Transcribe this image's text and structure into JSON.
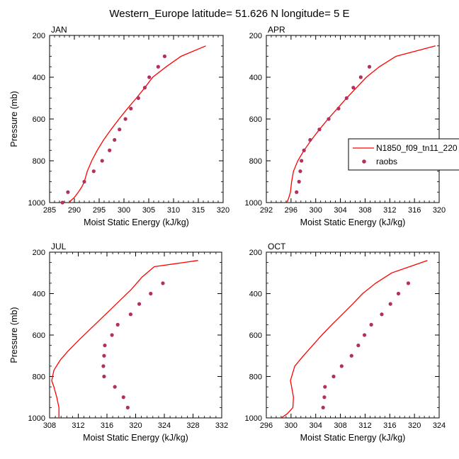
{
  "figure": {
    "title": "Western_Europe  latitude= 51.626 N longitude= 5 E",
    "ylabel": "Pressure (mb)",
    "xlabel": "Moist Static Energy (kJ/kg)",
    "legend": {
      "model_label": "N1850_f09_tn11_220",
      "obs_label": "raobs",
      "placement": "right of APR panel"
    },
    "colors": {
      "model": "#ff0000",
      "obs": "#b03060",
      "axis": "#000000"
    }
  },
  "chart_data": [
    {
      "type": "line+scatter",
      "panel": "JAN",
      "xlabel": "Moist Static Energy (kJ/kg)",
      "ylabel": "Pressure (mb)",
      "xlim": [
        285,
        320
      ],
      "ylim": [
        1000,
        200
      ],
      "xticks": [
        285,
        290,
        295,
        300,
        305,
        310,
        315,
        320
      ],
      "yticks": [
        200,
        400,
        600,
        800,
        1000
      ],
      "model": {
        "name": "N1850_f09_tn11_220",
        "x": [
          289.0,
          289.3,
          290.0,
          290.8,
          291.5,
          292.0,
          292.6,
          293.5,
          294.6,
          295.9,
          297.4,
          299.0,
          300.7,
          302.5,
          304.2,
          305.8,
          308.5,
          311.5,
          316.5
        ],
        "p": [
          1000,
          990,
          975,
          950,
          925,
          900,
          850,
          800,
          750,
          700,
          650,
          600,
          550,
          500,
          450,
          400,
          350,
          300,
          250
        ]
      },
      "obs": {
        "name": "raobs",
        "x": [
          287.6,
          288.7,
          292.0,
          293.9,
          295.6,
          297.1,
          298.1,
          299.1,
          300.3,
          301.4,
          302.9,
          304.2,
          305.1,
          306.9,
          308.2
        ],
        "p": [
          1000,
          950,
          900,
          850,
          800,
          750,
          700,
          650,
          600,
          550,
          500,
          450,
          400,
          350,
          300
        ]
      }
    },
    {
      "type": "line+scatter",
      "panel": "APR",
      "xlabel": "Moist Static Energy (kJ/kg)",
      "ylabel": "",
      "xlim": [
        292,
        320
      ],
      "ylim": [
        1000,
        200
      ],
      "xticks": [
        292,
        296,
        300,
        304,
        308,
        312,
        316,
        320
      ],
      "yticks": [
        200,
        400,
        600,
        800,
        1000
      ],
      "model": {
        "name": "N1850_f09_tn11_220",
        "x": [
          295.3,
          295.6,
          295.9,
          296.1,
          296.4,
          297.1,
          298.1,
          299.3,
          300.6,
          302.0,
          303.5,
          305.0,
          306.6,
          308.2,
          310.3,
          313.0,
          319.4
        ],
        "p": [
          1000,
          980,
          950,
          900,
          850,
          800,
          750,
          700,
          650,
          600,
          550,
          500,
          450,
          400,
          350,
          300,
          250
        ]
      },
      "obs": {
        "name": "raobs",
        "x": [
          296.9,
          297.3,
          297.5,
          297.7,
          298.1,
          299.1,
          300.6,
          302.1,
          303.7,
          305.0,
          306.1,
          307.3,
          308.7
        ],
        "p": [
          950,
          900,
          850,
          800,
          750,
          700,
          650,
          600,
          550,
          500,
          450,
          400,
          350
        ]
      }
    },
    {
      "type": "line+scatter",
      "panel": "JUL",
      "xlabel": "Moist Static Energy (kJ/kg)",
      "ylabel": "Pressure (mb)",
      "xlim": [
        308,
        332
      ],
      "ylim": [
        1000,
        200
      ],
      "xticks": [
        308,
        312,
        316,
        320,
        324,
        328,
        332
      ],
      "yticks": [
        200,
        400,
        600,
        800,
        1000
      ],
      "model": {
        "name": "N1850_f09_tn11_220",
        "x": [
          309.3,
          309.3,
          309.0,
          308.6,
          308.3,
          308.6,
          309.5,
          310.5,
          312.2,
          314.0,
          315.8,
          317.6,
          319.4,
          320.9,
          322.6,
          328.7
        ],
        "p": [
          1000,
          950,
          900,
          850,
          820,
          770,
          720,
          680,
          620,
          560,
          500,
          440,
          380,
          320,
          270,
          240
        ]
      },
      "obs": {
        "name": "raobs",
        "x": [
          318.9,
          318.3,
          317.1,
          315.6,
          315.5,
          315.6,
          315.7,
          316.7,
          317.5,
          319.3,
          320.5,
          322.1,
          323.8
        ],
        "p": [
          950,
          900,
          850,
          800,
          750,
          700,
          650,
          600,
          550,
          500,
          450,
          400,
          350
        ]
      }
    },
    {
      "type": "line+scatter",
      "panel": "OCT",
      "xlabel": "Moist Static Energy (kJ/kg)",
      "ylabel": "",
      "xlim": [
        296,
        324
      ],
      "ylim": [
        1000,
        200
      ],
      "xticks": [
        296,
        300,
        304,
        308,
        312,
        316,
        320,
        324
      ],
      "yticks": [
        200,
        400,
        600,
        800,
        1000
      ],
      "model": {
        "name": "N1850_f09_tn11_220",
        "x": [
          298.4,
          299.4,
          300.3,
          300.4,
          300.1,
          299.9,
          300.6,
          302.0,
          303.5,
          305.0,
          306.6,
          308.3,
          310.0,
          311.6,
          313.7,
          316.3,
          322.1
        ],
        "p": [
          1000,
          980,
          950,
          900,
          850,
          820,
          750,
          700,
          650,
          600,
          550,
          500,
          450,
          400,
          350,
          300,
          240
        ]
      },
      "obs": {
        "name": "raobs",
        "x": [
          305.2,
          305.4,
          305.5,
          306.9,
          308.2,
          309.8,
          310.9,
          311.9,
          313.0,
          314.7,
          316.1,
          317.4,
          319.0
        ],
        "p": [
          950,
          900,
          850,
          800,
          750,
          700,
          650,
          600,
          550,
          500,
          450,
          400,
          350
        ]
      }
    }
  ]
}
